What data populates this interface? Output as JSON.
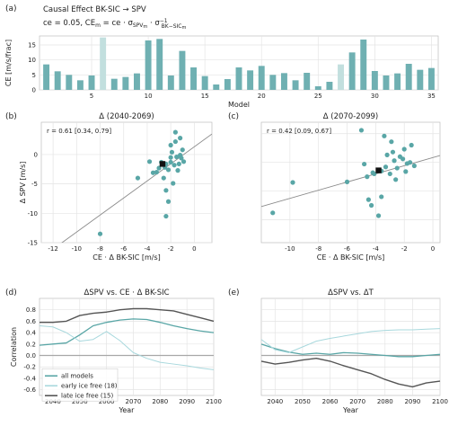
{
  "colors": {
    "teal": "#59a6a6",
    "light": "#a8d8dd",
    "dark": "#555555",
    "bar": "#6fb0b2",
    "bar_hl": "#c2dfde",
    "fit": "#8a8a8a"
  },
  "header": {
    "panel": "(a)",
    "line1": "Causal Effect  BK-SIC  →  SPV",
    "line2": "ce = 0.05,  CE",
    "line2_sub": "m",
    "line2_rest": " = ce · σ",
    "line2_sub2": "SPV",
    "line2_sub2b": "m",
    "line2_tail": " · σ",
    "line2_sup": "−1",
    "line2_sub3": "BK−SIC",
    "line2_sub3b": "m"
  },
  "chart_data": [
    {
      "type": "bar",
      "panel": "(a)",
      "xlabel": "Model",
      "ylabel": "CE [m/s/frac]",
      "x_ticks": [
        5,
        10,
        15,
        20,
        25,
        30,
        35
      ],
      "y_ticks": [
        0,
        5,
        10,
        15
      ],
      "ylim": [
        0,
        18
      ],
      "categories": [
        1,
        2,
        3,
        4,
        5,
        6,
        7,
        8,
        9,
        10,
        11,
        12,
        13,
        14,
        15,
        16,
        17,
        18,
        19,
        20,
        21,
        22,
        23,
        24,
        25,
        26,
        27,
        28,
        29,
        30,
        31,
        32,
        33,
        34,
        35
      ],
      "values": [
        8.5,
        6.2,
        5.0,
        3.2,
        4.8,
        17.5,
        3.7,
        4.3,
        5.5,
        16.5,
        17.0,
        4.8,
        13.0,
        7.5,
        4.6,
        1.8,
        3.6,
        7.5,
        6.5,
        8.0,
        5.0,
        5.6,
        3.2,
        5.7,
        1.2,
        2.7,
        8.5,
        12.5,
        16.8,
        6.3,
        4.8,
        5.5,
        8.7,
        6.7,
        7.3
      ],
      "highlighted": [
        6,
        27
      ]
    },
    {
      "type": "scatter",
      "panel": "(b)",
      "title": "Δ (2040-2069)",
      "xlabel": "CE · Δ BK-SIC [m/s]",
      "ylabel": "Δ SPV [m/s]",
      "annotation": "r = 0.61 [0.34, 0.79]",
      "xlim": [
        -13,
        1.5
      ],
      "ylim": [
        -15,
        5.5
      ],
      "x_ticks": [
        -12,
        -10,
        -8,
        -6,
        -4,
        -2,
        0
      ],
      "y_ticks": [
        -15,
        -10,
        -5,
        0
      ],
      "points": [
        [
          -8,
          -13.5
        ],
        [
          -4.8,
          -4
        ],
        [
          -3.8,
          -1.2
        ],
        [
          -3.5,
          -3.1
        ],
        [
          -3.2,
          -3.0
        ],
        [
          -3.0,
          -2.3
        ],
        [
          -2.8,
          -1.3
        ],
        [
          -2.6,
          -4
        ],
        [
          -2.5,
          -2.2
        ],
        [
          -2.4,
          -1.6
        ],
        [
          -2.2,
          -2.6
        ],
        [
          -2.0,
          -0.5
        ],
        [
          -2.0,
          -1.3
        ],
        [
          -1.9,
          0.4
        ],
        [
          -1.7,
          -1.8
        ],
        [
          -1.5,
          -0.4
        ],
        [
          -1.4,
          -2.7
        ],
        [
          -1.3,
          -1.6
        ],
        [
          -1.2,
          -0.1
        ],
        [
          -1.1,
          -0.6
        ],
        [
          -1.0,
          0.8
        ],
        [
          -0.9,
          -1.2
        ],
        [
          -1.6,
          2.2
        ],
        [
          -1.2,
          2.8
        ],
        [
          -2.0,
          1.6
        ],
        [
          -1.6,
          3.8
        ],
        [
          -2.4,
          -6.1
        ],
        [
          -2.2,
          -8.0
        ],
        [
          -2.4,
          -10.5
        ],
        [
          -1.8,
          -4.9
        ]
      ],
      "mean": [
        -2.7,
        -1.6
      ],
      "fit": [
        [
          -12,
          -16.1
        ],
        [
          1.5,
          3.5
        ]
      ]
    },
    {
      "type": "scatter",
      "panel": "(c)",
      "title": "Δ (2070-2099)",
      "xlabel": "CE · Δ BK-SIC [m/s]",
      "ylabel": "",
      "annotation": "r = 0.42 [0.09, 0.67]",
      "xlim": [
        -12,
        0.5
      ],
      "ylim": [
        -14,
        7
      ],
      "x_ticks": [
        -10,
        -8,
        -6,
        -4,
        -2,
        0
      ],
      "y_ticks": [],
      "points": [
        [
          -11.2,
          -8.8
        ],
        [
          -9.8,
          -3.5
        ],
        [
          -6,
          -3.4
        ],
        [
          -5,
          5.6
        ],
        [
          -4.8,
          -0.3
        ],
        [
          -4.6,
          -2.5
        ],
        [
          -4.5,
          -6.5
        ],
        [
          -4.3,
          -7.5
        ],
        [
          -4.2,
          -1.8
        ],
        [
          -4.1,
          -2.0
        ],
        [
          -3.8,
          -9.3
        ],
        [
          -3.6,
          -6.0
        ],
        [
          -3.6,
          -1.5
        ],
        [
          -3.3,
          -0.8
        ],
        [
          -3.2,
          1.3
        ],
        [
          -3.0,
          -2.0
        ],
        [
          -2.9,
          3.6
        ],
        [
          -2.7,
          0.3
        ],
        [
          -2.6,
          -3.0
        ],
        [
          -2.5,
          -1.0
        ],
        [
          -2.3,
          1.0
        ],
        [
          -2.1,
          0.6
        ],
        [
          -2.0,
          2.3
        ],
        [
          -1.9,
          -1.6
        ],
        [
          -1.8,
          -0.2
        ],
        [
          -1.6,
          0.0
        ],
        [
          -1.5,
          3.0
        ],
        [
          -1.3,
          -0.6
        ],
        [
          -3.4,
          4.6
        ],
        [
          -2.8,
          1.8
        ]
      ],
      "mean": [
        -3.8,
        -1.4
      ],
      "fit": [
        [
          -12,
          -7.7
        ],
        [
          0.5,
          1.2
        ]
      ]
    },
    {
      "type": "line",
      "panel": "(d)",
      "title": "ΔSPV vs. CE · Δ BK-SIC",
      "xlabel": "Year",
      "ylabel": "Correlation",
      "xlim": [
        2035,
        2100
      ],
      "ylim": [
        -0.7,
        1.0
      ],
      "x_ticks": [
        2040,
        2050,
        2060,
        2070,
        2080,
        2090,
        2100
      ],
      "y_ticks": [
        -0.6,
        -0.4,
        -0.2,
        0.0,
        0.2,
        0.4,
        0.6,
        0.8
      ],
      "legend": [
        "all models",
        "early ice free (18)",
        "late ice free (15)"
      ],
      "legend_loc": "lower left",
      "series": [
        {
          "name": "all models",
          "x": [
            2035,
            2040,
            2045,
            2050,
            2055,
            2060,
            2065,
            2070,
            2075,
            2080,
            2085,
            2090,
            2095,
            2100
          ],
          "y": [
            0.18,
            0.2,
            0.22,
            0.36,
            0.52,
            0.58,
            0.62,
            0.64,
            0.63,
            0.58,
            0.52,
            0.47,
            0.43,
            0.4
          ]
        },
        {
          "name": "early ice free (18)",
          "x": [
            2035,
            2040,
            2045,
            2050,
            2055,
            2060,
            2065,
            2070,
            2075,
            2080,
            2085,
            2090,
            2095,
            2100
          ],
          "y": [
            0.52,
            0.5,
            0.4,
            0.25,
            0.28,
            0.42,
            0.26,
            0.05,
            -0.05,
            -0.12,
            -0.15,
            -0.18,
            -0.22,
            -0.25
          ]
        },
        {
          "name": "late ice free (15)",
          "x": [
            2035,
            2040,
            2045,
            2050,
            2055,
            2060,
            2065,
            2070,
            2075,
            2080,
            2085,
            2090,
            2095,
            2100
          ],
          "y": [
            0.58,
            0.58,
            0.6,
            0.7,
            0.74,
            0.76,
            0.8,
            0.82,
            0.82,
            0.8,
            0.78,
            0.72,
            0.66,
            0.6
          ]
        }
      ]
    },
    {
      "type": "line",
      "panel": "(e)",
      "title": "ΔSPV vs. ΔT",
      "xlabel": "Year",
      "ylabel": "",
      "xlim": [
        2035,
        2100
      ],
      "ylim": [
        -0.7,
        1.0
      ],
      "x_ticks": [
        2040,
        2050,
        2060,
        2070,
        2080,
        2090,
        2100
      ],
      "y_ticks": [],
      "series": [
        {
          "name": "all models",
          "x": [
            2035,
            2040,
            2045,
            2050,
            2055,
            2060,
            2065,
            2070,
            2075,
            2080,
            2085,
            2090,
            2095,
            2100
          ],
          "y": [
            0.2,
            0.12,
            0.06,
            0.02,
            0.04,
            0.02,
            0.05,
            0.04,
            0.02,
            0.0,
            -0.02,
            -0.02,
            0.0,
            0.02
          ]
        },
        {
          "name": "early ice free (18)",
          "x": [
            2035,
            2040,
            2045,
            2050,
            2055,
            2060,
            2065,
            2070,
            2075,
            2080,
            2085,
            2090,
            2095,
            2100
          ],
          "y": [
            0.28,
            0.1,
            0.05,
            0.15,
            0.25,
            0.3,
            0.34,
            0.38,
            0.42,
            0.44,
            0.45,
            0.45,
            0.46,
            0.47
          ]
        },
        {
          "name": "late ice free (15)",
          "x": [
            2035,
            2040,
            2045,
            2050,
            2055,
            2060,
            2065,
            2070,
            2075,
            2080,
            2085,
            2090,
            2095,
            2100
          ],
          "y": [
            -0.1,
            -0.15,
            -0.12,
            -0.08,
            -0.05,
            -0.1,
            -0.18,
            -0.25,
            -0.32,
            -0.42,
            -0.5,
            -0.55,
            -0.48,
            -0.45
          ]
        }
      ]
    }
  ]
}
